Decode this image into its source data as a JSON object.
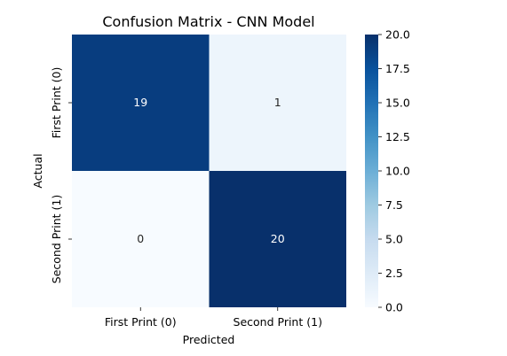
{
  "chart_data": {
    "type": "heatmap",
    "title": "Confusion Matrix - CNN Model",
    "xlabel": "Predicted",
    "ylabel": "Actual",
    "x_categories": [
      "First Print (0)",
      "Second Print (1)"
    ],
    "y_categories": [
      "First Print (0)",
      "Second Print (1)"
    ],
    "values": [
      [
        19,
        1
      ],
      [
        0,
        20
      ]
    ],
    "value_labels": [
      [
        "19",
        "1"
      ],
      [
        "0",
        "20"
      ]
    ],
    "colormap": "Blues",
    "colorbar": {
      "range": [
        0,
        20
      ],
      "ticks": [
        0,
        2.5,
        5,
        7.5,
        10,
        12.5,
        15,
        17.5,
        20
      ],
      "tick_labels": [
        "0.0",
        "2.5",
        "5.0",
        "7.5",
        "10.0",
        "12.5",
        "15.0",
        "17.5",
        "20.0"
      ]
    },
    "grid": false,
    "legend": "colorbar-right"
  }
}
